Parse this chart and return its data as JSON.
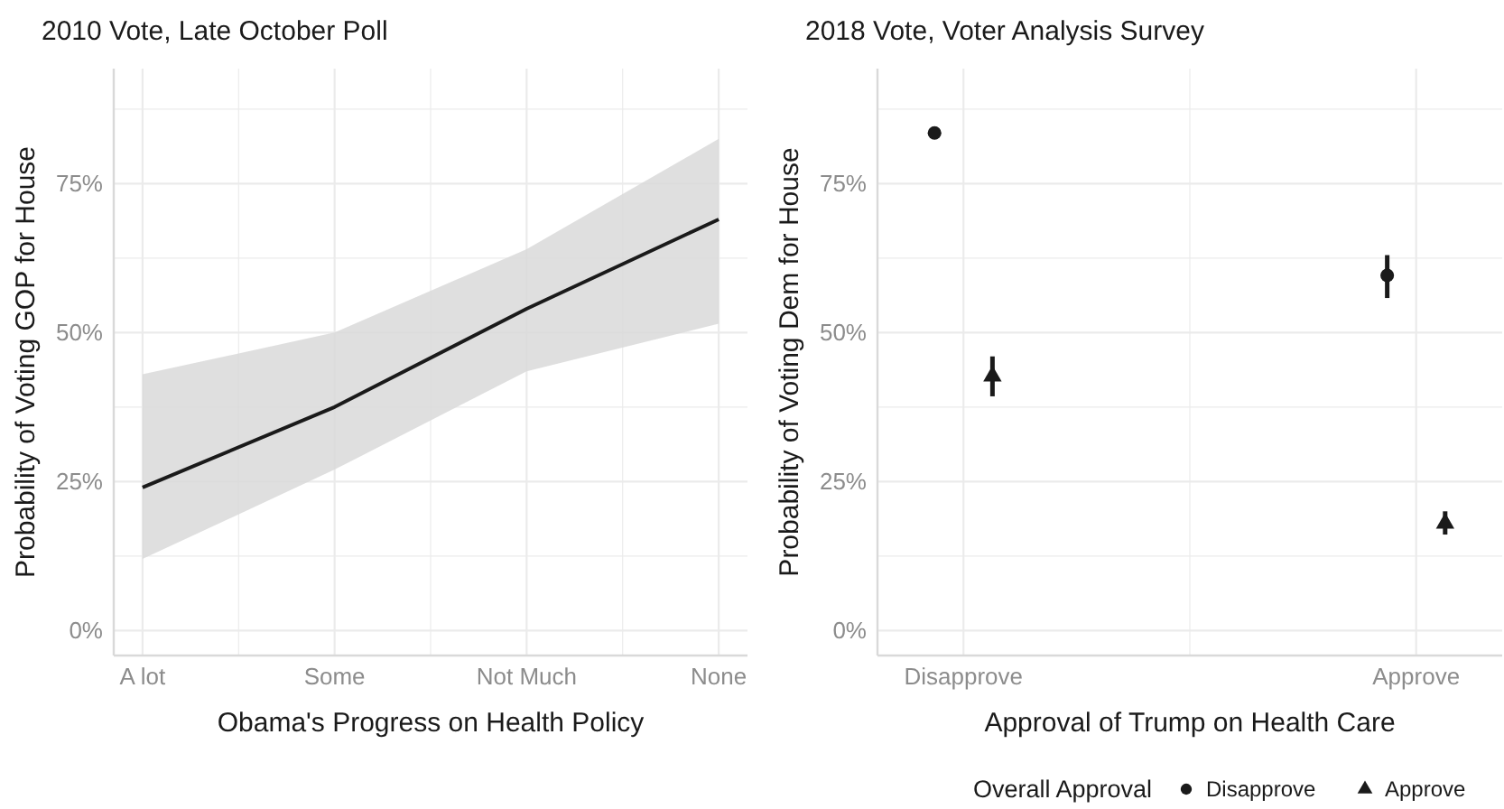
{
  "chart_data": [
    {
      "type": "line",
      "title": "2010 Vote, Late October Poll",
      "xlabel": "Obama's Progress on Health Policy",
      "ylabel": "Probability of Voting GOP for House",
      "categories": [
        "A lot",
        "Some",
        "Not Much",
        "None"
      ],
      "series": [
        {
          "color": "#1a1a1a",
          "values": [
            0.24,
            0.375,
            0.54,
            0.69
          ],
          "lower": [
            0.12,
            0.27,
            0.435,
            0.515
          ],
          "upper": [
            0.43,
            0.5,
            0.64,
            0.825
          ]
        }
      ],
      "ylim": [
        -0.042,
        0.943
      ],
      "yticks": [
        {
          "value": 0,
          "label": "0%"
        },
        {
          "value": 0.125,
          "label": null
        },
        {
          "value": 0.25,
          "label": "25%"
        },
        {
          "value": 0.375,
          "label": null
        },
        {
          "value": 0.5,
          "label": "50%"
        },
        {
          "value": 0.625,
          "label": null
        },
        {
          "value": 0.75,
          "label": "75%"
        },
        {
          "value": 0.875,
          "label": null
        }
      ],
      "grid": true,
      "line_style": "solid",
      "legend": false
    },
    {
      "type": "scatter",
      "title": "2018 Vote, Voter Analysis Survey",
      "xlabel": "Approval of Trump on Health Care",
      "ylabel": "Probability of Voting Dem for House",
      "legend_title": "Overall Approval",
      "categories": [
        "Disapprove",
        "Approve"
      ],
      "series": [
        {
          "name": "Disapprove",
          "color": "#1a1a1a",
          "marker": "circle",
          "values": [
            0.835,
            0.596
          ],
          "errors": [
            [
              0.825,
              0.845
            ],
            [
              0.558,
              0.63
            ]
          ]
        },
        {
          "name": "Approve",
          "color": "#1a1a1a",
          "marker": "triangle",
          "values": [
            0.427,
            0.18
          ],
          "errors": [
            [
              0.393,
              0.46
            ],
            [
              0.161,
              0.2
            ]
          ]
        }
      ],
      "ylim": [
        -0.042,
        0.943
      ],
      "yticks": [
        {
          "value": 0,
          "label": "0%"
        },
        {
          "value": 0.125,
          "label": null
        },
        {
          "value": 0.25,
          "label": "25%"
        },
        {
          "value": 0.375,
          "label": null
        },
        {
          "value": 0.5,
          "label": "50%"
        },
        {
          "value": 0.625,
          "label": null
        },
        {
          "value": 0.75,
          "label": "75%"
        },
        {
          "value": 0.875,
          "label": null
        }
      ],
      "grid": true,
      "legend": "bottom"
    }
  ]
}
